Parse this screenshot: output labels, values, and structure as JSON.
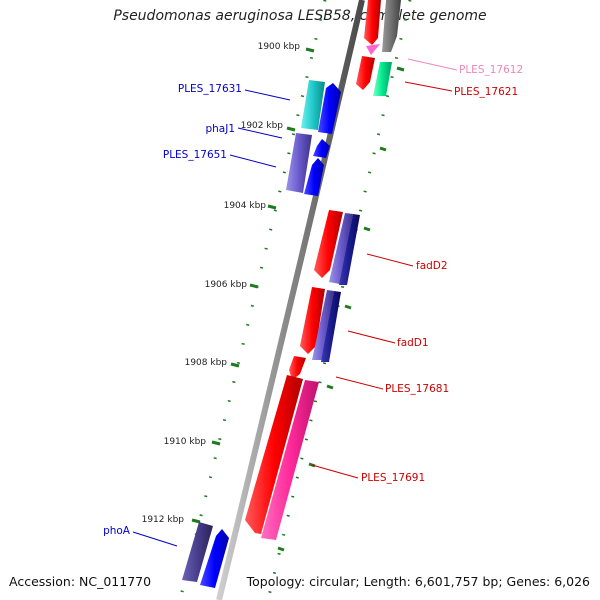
{
  "title": "Pseudomonas aeruginosa LESB58, complete genome",
  "accession": "Accession: NC_011770",
  "topology": "Topology: circular; Length: 6,601,757 bp; Genes: 6,026",
  "colors": {
    "backbone": "#8c8c8c",
    "ticks": "#1e7a1e",
    "forward_label": "#0000cc",
    "reverse_label": "#cc0000",
    "pink_label": "#ee88bb"
  },
  "scale": {
    "labels": [
      {
        "text": "1900 kbp"
      },
      {
        "text": "1902 kbp"
      },
      {
        "text": "1904 kbp"
      },
      {
        "text": "1906 kbp"
      },
      {
        "text": "1908 kbp"
      },
      {
        "text": "1910 kbp"
      },
      {
        "text": "1912 kbp"
      }
    ]
  },
  "genes": [
    {
      "name": "PLES_17612",
      "strand": "reverse",
      "label_color": "#ee88bb"
    },
    {
      "name": "PLES_17621",
      "strand": "reverse",
      "label_color": "#cc0000"
    },
    {
      "name": "PLES_17631",
      "strand": "forward",
      "label_color": "#0000cc"
    },
    {
      "name": "phaJ1",
      "strand": "forward",
      "label_color": "#0000cc"
    },
    {
      "name": "PLES_17651",
      "strand": "forward",
      "label_color": "#0000cc"
    },
    {
      "name": "fadD2",
      "strand": "reverse",
      "label_color": "#cc0000"
    },
    {
      "name": "fadD1",
      "strand": "reverse",
      "label_color": "#cc0000"
    },
    {
      "name": "PLES_17681",
      "strand": "reverse",
      "label_color": "#cc0000"
    },
    {
      "name": "PLES_17691",
      "strand": "reverse",
      "label_color": "#cc0000"
    },
    {
      "name": "phoA",
      "strand": "forward",
      "label_color": "#0000cc"
    }
  ]
}
